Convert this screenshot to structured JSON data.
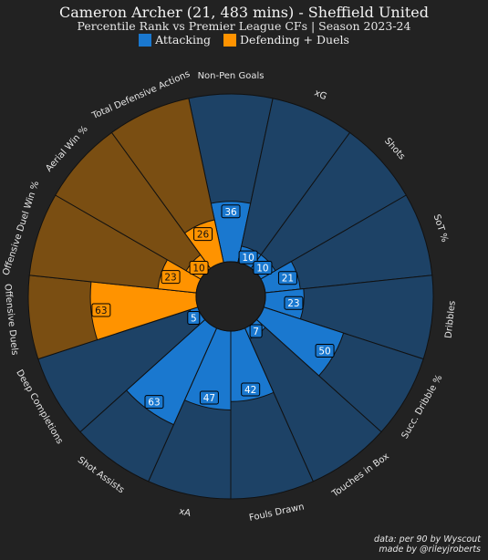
{
  "title": "Cameron Archer (21, 483 mins) - Sheffield United",
  "subtitle": "Percentile Rank vs Premier League CFs | Season 2023-24",
  "legend": [
    {
      "label": "Attacking",
      "color": "#1a78cf"
    },
    {
      "label": "Defending + Duels",
      "color": "#ff9300"
    }
  ],
  "credit": [
    "data: per 90 by Wyscout",
    "made by @rileyjroberts"
  ],
  "colors": {
    "background": "#222222",
    "attacking": "#1a78cf",
    "attacking_bg": "#1d4266",
    "defending": "#ff9300",
    "defending_bg": "#7a4e12",
    "label_text": "#e6e6e6"
  },
  "chart_data": {
    "type": "radar-pizza",
    "rlim": [
      0,
      100
    ],
    "slices": [
      {
        "param": "Non-Pen Goals",
        "value": 36,
        "group": "Attacking"
      },
      {
        "param": "xG",
        "value": 10,
        "group": "Attacking"
      },
      {
        "param": "Shots",
        "value": 10,
        "group": "Attacking"
      },
      {
        "param": "SoT %",
        "value": 21,
        "group": "Attacking"
      },
      {
        "param": "Dribbles",
        "value": 23,
        "group": "Attacking"
      },
      {
        "param": "Succ. Dribble %",
        "value": 50,
        "group": "Attacking"
      },
      {
        "param": "Touches in Box",
        "value": 7,
        "group": "Attacking"
      },
      {
        "param": "Fouls Drawn",
        "value": 42,
        "group": "Attacking"
      },
      {
        "param": "xA",
        "value": 47,
        "group": "Attacking"
      },
      {
        "param": "Shot Assists",
        "value": 63,
        "group": "Attacking"
      },
      {
        "param": "Deep Completions",
        "value": 5,
        "group": "Attacking"
      },
      {
        "param": "Offensive Duels",
        "value": 63,
        "group": "Defending + Duels"
      },
      {
        "param": "Offensive Duel Win %",
        "value": 23,
        "group": "Defending + Duels"
      },
      {
        "param": "Aerial Win %",
        "value": 10,
        "group": "Defending + Duels"
      },
      {
        "param": "Total Defensive Actions",
        "value": 26,
        "group": "Defending + Duels"
      }
    ]
  }
}
